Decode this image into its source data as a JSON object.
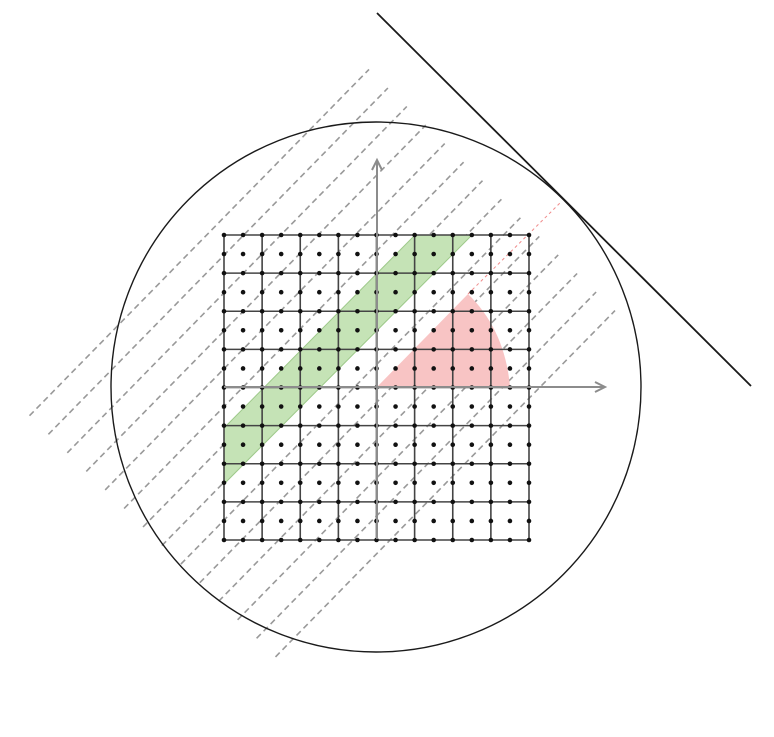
{
  "diagram": {
    "type": "lattice-geometry",
    "description_elements": [
      "lattice",
      "axes",
      "circle",
      "tangent-line",
      "dashed-hyperplanes",
      "slab",
      "sector"
    ],
    "lattice": {
      "cells_per_side": 8,
      "nodes_per_cell_edge": 2
    },
    "hyperplanes": {
      "count": 14,
      "style": "dashed"
    },
    "colors": {
      "slab_fill": "#c5e3b6",
      "slab_stroke": "#9ec98a",
      "sector_fill": "#f8c4c4",
      "sector_edge": "#f08b8b",
      "grid": "#444444",
      "axis": "#8c8c8c",
      "dashed": "#999999",
      "circle": "#1a1a1a"
    }
  }
}
